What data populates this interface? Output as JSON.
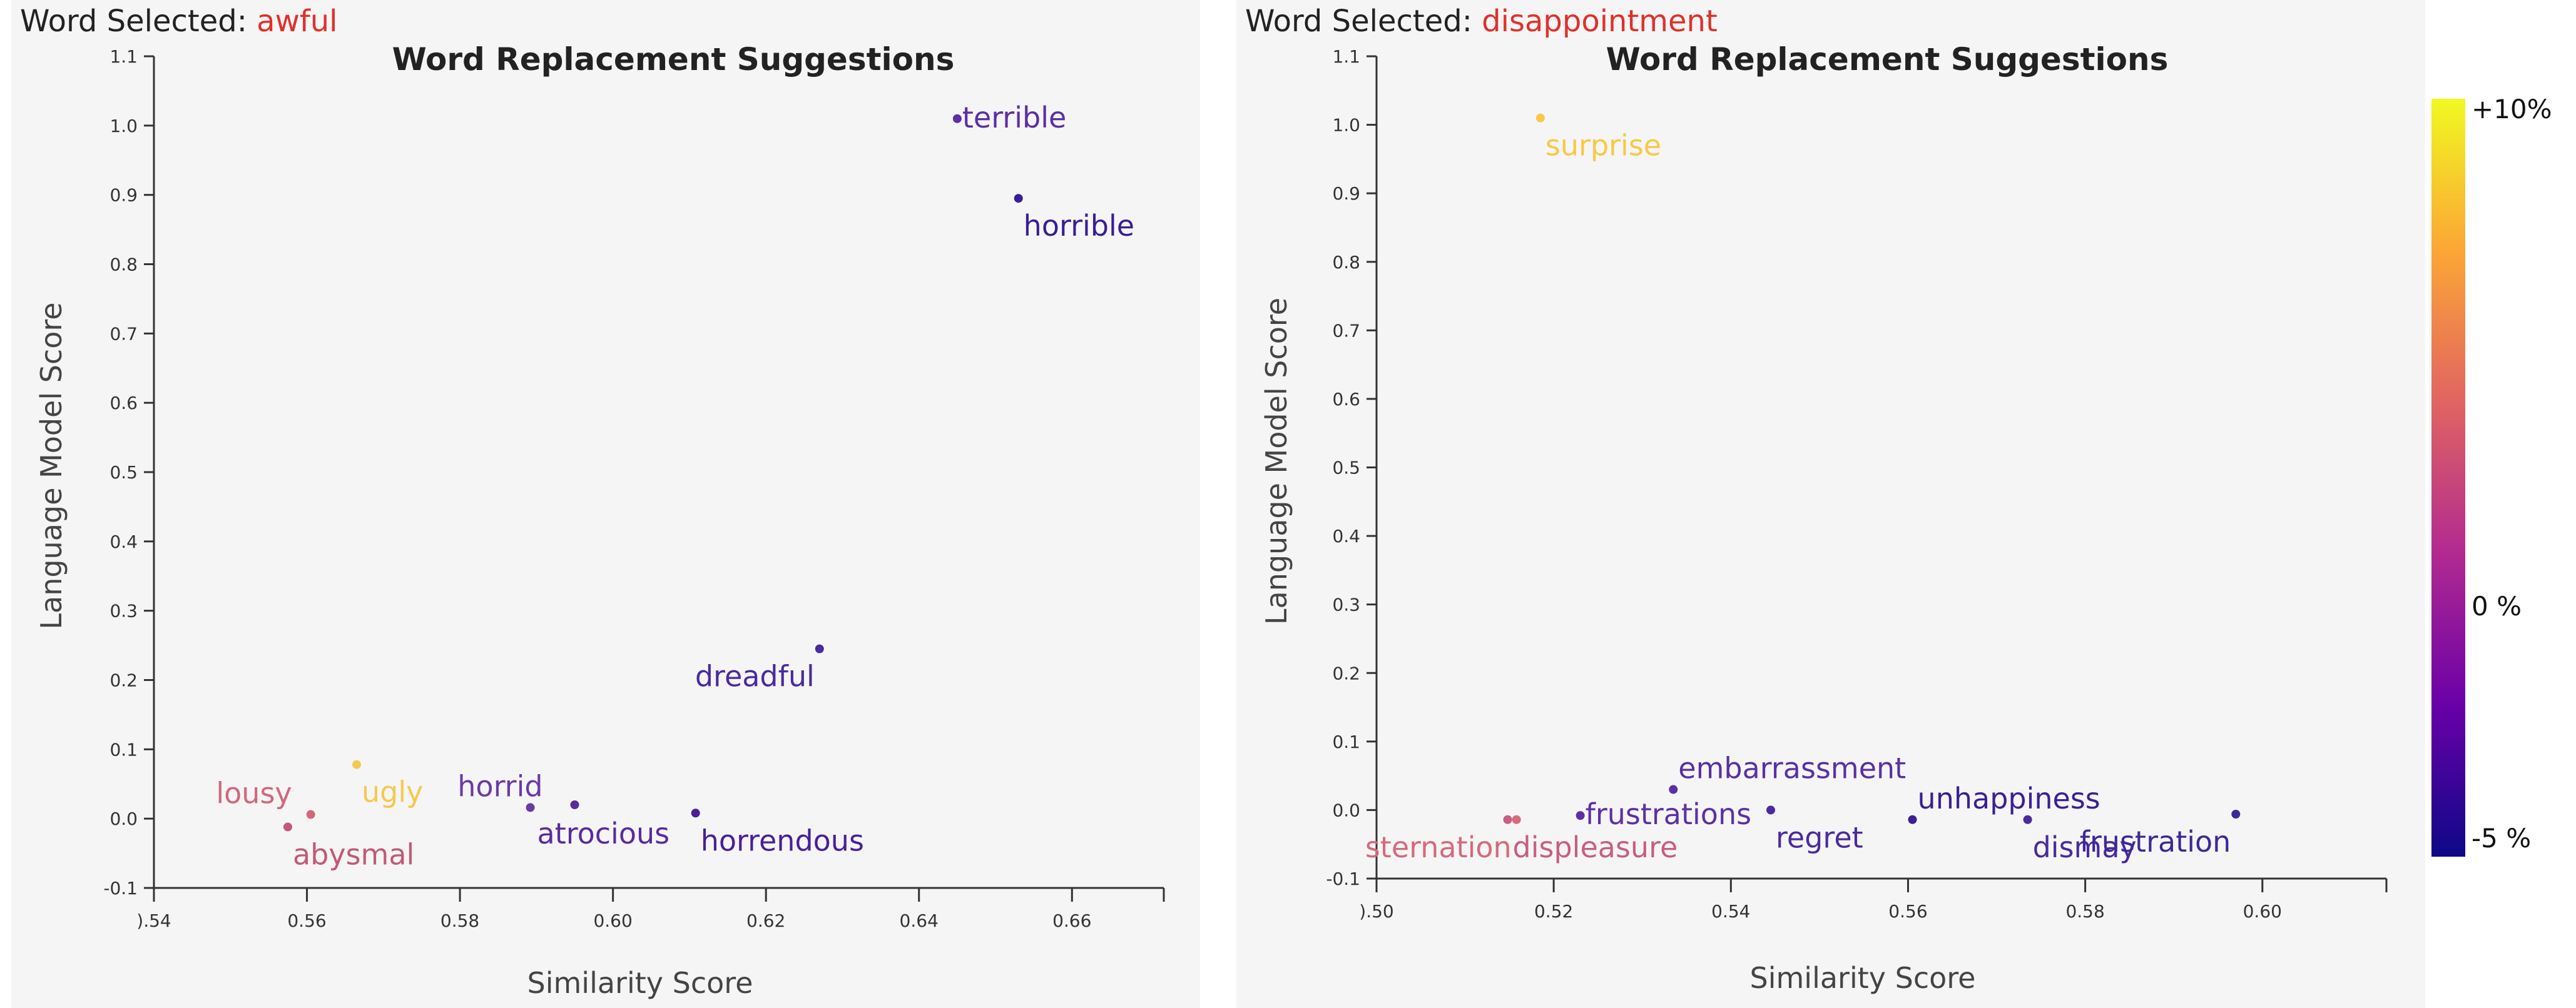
{
  "panels": [
    {
      "word_label": "Word Selected:",
      "word": "awful"
    },
    {
      "word_label": "Word Selected:",
      "word": "disappointment"
    }
  ],
  "colorbar": {
    "top_label": "+10%",
    "mid_label": "0 %",
    "bottom_label": "-5 %",
    "colors": [
      "#f0f921",
      "#fca636",
      "#e16462",
      "#b12a90",
      "#6a00a8",
      "#0d0887"
    ]
  },
  "chart_data": [
    {
      "type": "scatter",
      "title": "Word Replacement Suggestions",
      "xlabel": "Similarity Score",
      "ylabel": "Language Model Score",
      "xlim": [
        0.54,
        0.672
      ],
      "ylim": [
        -0.1,
        1.1
      ],
      "xticks": [
        0.54,
        0.56,
        0.58,
        0.6,
        0.62,
        0.64,
        0.66
      ],
      "xtick_labels": [
        ").54",
        "0.56",
        "0.58",
        "0.60",
        "0.62",
        "0.64",
        "0.66"
      ],
      "yticks": [
        -0.1,
        0.0,
        0.1,
        0.2,
        0.3,
        0.4,
        0.5,
        0.6,
        0.7,
        0.8,
        0.9,
        1.0,
        1.1
      ],
      "ytick_labels": [
        "-0.1",
        "0.0",
        "0.1",
        "0.2",
        "0.3",
        "0.4",
        "0.5",
        "0.6",
        "0.7",
        "0.8",
        "0.9",
        "1.0",
        "1.1"
      ],
      "points": [
        {
          "label": "terrible",
          "x": 0.645,
          "y": 1.01,
          "color": "#5c2ea6",
          "pos": "right"
        },
        {
          "label": "horrible",
          "x": 0.653,
          "y": 0.895,
          "color": "#3a1d96",
          "pos": "below-right"
        },
        {
          "label": "dreadful",
          "x": 0.627,
          "y": 0.245,
          "color": "#4a2aa0",
          "pos": "below-left"
        },
        {
          "label": "horrid",
          "x": 0.5892,
          "y": 0.016,
          "color": "#6a3aa8",
          "pos": "above-left"
        },
        {
          "label": "atrocious",
          "x": 0.595,
          "y": 0.02,
          "color": "#5a2a9e",
          "pos": "below"
        },
        {
          "label": "horrendous",
          "x": 0.6108,
          "y": 0.008,
          "color": "#4a1f99",
          "pos": "below-right"
        },
        {
          "label": "ugly",
          "x": 0.5665,
          "y": 0.078,
          "color": "#f5c94f",
          "pos": "below-right"
        },
        {
          "label": "lousy",
          "x": 0.5605,
          "y": 0.006,
          "color": "#d1687c",
          "pos": "above-left"
        },
        {
          "label": "abysmal",
          "x": 0.5575,
          "y": -0.012,
          "color": "#c25a78",
          "pos": "below-right"
        }
      ]
    },
    {
      "type": "scatter",
      "title": "Word Replacement Suggestions",
      "xlabel": "Similarity Score",
      "ylabel": "Language Model Score",
      "xlim": [
        0.5,
        0.614
      ],
      "ylim": [
        -0.1,
        1.1
      ],
      "xticks": [
        0.5,
        0.52,
        0.54,
        0.56,
        0.58,
        0.6
      ],
      "xtick_labels": [
        ").50",
        "0.52",
        "0.54",
        "0.56",
        "0.58",
        "0.60"
      ],
      "yticks": [
        -0.1,
        0.0,
        0.1,
        0.2,
        0.3,
        0.4,
        0.5,
        0.6,
        0.7,
        0.8,
        0.9,
        1.0,
        1.1
      ],
      "ytick_labels": [
        "-0.1",
        "0.0",
        "0.1",
        "0.2",
        "0.3",
        "0.4",
        "0.5",
        "0.6",
        "0.7",
        "0.8",
        "0.9",
        "1.0",
        "1.1"
      ],
      "points": [
        {
          "label": "surprise",
          "x": 0.5185,
          "y": 1.01,
          "color": "#f8c847",
          "pos": "below-right"
        },
        {
          "label": "embarrassment",
          "x": 0.5335,
          "y": 0.03,
          "color": "#5a30a2",
          "pos": "above-right"
        },
        {
          "label": "frustrations",
          "x": 0.523,
          "y": -0.008,
          "color": "#5e30a4",
          "pos": "right"
        },
        {
          "label": "regret",
          "x": 0.5445,
          "y": 0.0,
          "color": "#4c2a9e",
          "pos": "below-right"
        },
        {
          "label": "unhappiness",
          "x": 0.5605,
          "y": -0.014,
          "color": "#3c1f96",
          "pos": "above-right"
        },
        {
          "label": "dismay",
          "x": 0.5735,
          "y": -0.014,
          "color": "#4a2a9c",
          "pos": "below-right"
        },
        {
          "label": "frustration",
          "x": 0.597,
          "y": -0.006,
          "color": "#3e2898",
          "pos": "below-left"
        },
        {
          "label": "sternation",
          "x": 0.5158,
          "y": -0.014,
          "color": "#d56a7c",
          "pos": "below-left"
        },
        {
          "label": "displeasure",
          "x": 0.5148,
          "y": -0.014,
          "color": "#c85e82",
          "pos": "below-right"
        }
      ]
    }
  ]
}
